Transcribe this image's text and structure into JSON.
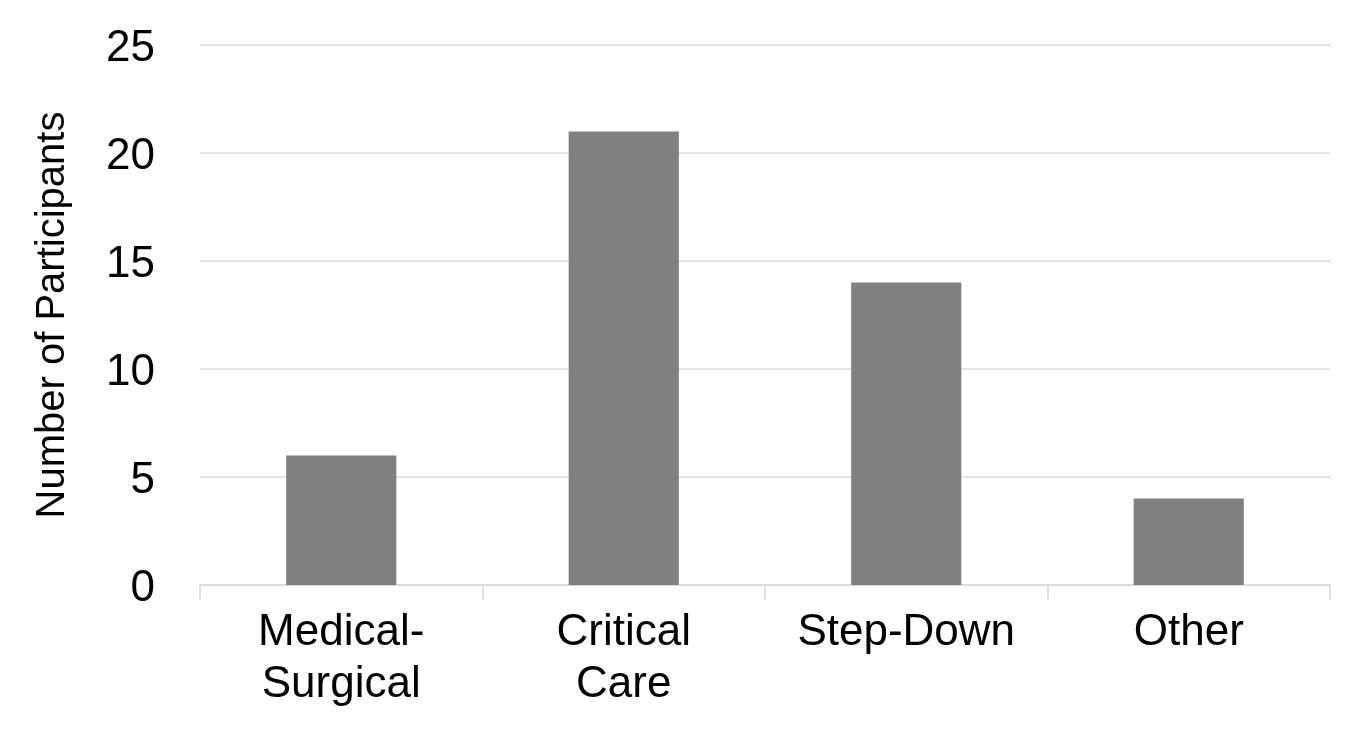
{
  "chart_data": {
    "type": "bar",
    "ylabel": "Number of Participants",
    "categories": [
      "Medical-\nSurgical",
      "Critical\nCare",
      "Step-Down",
      "Other"
    ],
    "values": [
      6,
      21,
      14,
      4
    ],
    "color": "#808080",
    "ylim": [
      0,
      25
    ],
    "yticks": [
      0,
      5,
      10,
      15,
      20,
      25
    ],
    "grid": "y"
  }
}
